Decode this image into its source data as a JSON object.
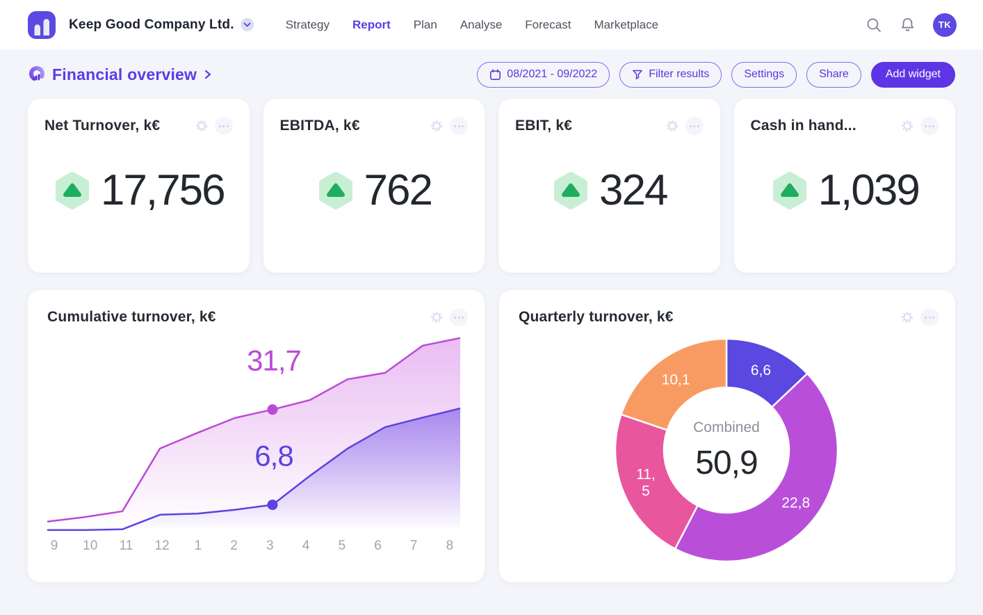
{
  "nav": {
    "company": "Keep Good Company Ltd.",
    "items": [
      {
        "label": "Strategy",
        "active": false
      },
      {
        "label": "Report",
        "active": true
      },
      {
        "label": "Plan",
        "active": false
      },
      {
        "label": "Analyse",
        "active": false
      },
      {
        "label": "Forecast",
        "active": false
      },
      {
        "label": "Marketplace",
        "active": false
      }
    ],
    "avatar_initials": "TK"
  },
  "header": {
    "title": "Financial overview",
    "date_range": "08/2021 - 09/2022",
    "filter_label": "Filter results",
    "settings_label": "Settings",
    "share_label": "Share",
    "add_widget_label": "Add widget"
  },
  "kpi_cards": [
    {
      "title": "Net Turnover, k€",
      "value": "17,756",
      "trend": "up"
    },
    {
      "title": "EBITDA, k€",
      "value": "762",
      "trend": "up"
    },
    {
      "title": "EBIT, k€",
      "value": "324",
      "trend": "up"
    },
    {
      "title": "Cash in hand...",
      "value": "1,039",
      "trend": "up"
    }
  ],
  "colors": {
    "accent": "#5b3ce6",
    "magenta_line": "#bb4ad6",
    "blue_line": "#5b43e0",
    "green_badge_bg": "#c8efd3",
    "green_badge_arrow": "#1fae5e",
    "page_bg": "#f3f5fa"
  },
  "chart_data": [
    {
      "type": "area",
      "title": "Cumulative turnover, k€",
      "x": [
        "9",
        "10",
        "11",
        "12",
        "1",
        "2",
        "3",
        "4",
        "5",
        "6",
        "7",
        "8"
      ],
      "ylim": [
        0,
        51
      ],
      "grid": false,
      "legend": "none",
      "series": [
        {
          "name": "cumulative-upper",
          "color": "#bb4ad6",
          "values": [
            2.4,
            3.6,
            5.1,
            21.5,
            25.6,
            29.5,
            31.7,
            34.2,
            39.6,
            41.3,
            48.4,
            50.4
          ],
          "point": {
            "x": "3",
            "value": 31.7,
            "label": "31,7"
          }
        },
        {
          "name": "cumulative-lower",
          "color": "#5b43e0",
          "values": [
            0.2,
            0.2,
            0.4,
            4.2,
            4.5,
            5.5,
            6.8,
            14.4,
            21.5,
            27.1,
            29.6,
            32.0
          ],
          "point": {
            "x": "3",
            "value": 6.8,
            "label": "6,8"
          }
        }
      ]
    },
    {
      "type": "donut",
      "title": "Quarterly turnover, k€",
      "center_label": "Combined",
      "center_value": "50,9",
      "slices": [
        {
          "label": "6,6",
          "value": 6.6,
          "color": "#5a48e0"
        },
        {
          "label": "22,8",
          "value": 22.8,
          "color": "#b94fd9"
        },
        {
          "label": "11,\n5",
          "value": 11.5,
          "color": "#e8569d"
        },
        {
          "label": "10,1",
          "value": 10.1,
          "color": "#f89b62"
        }
      ]
    }
  ]
}
